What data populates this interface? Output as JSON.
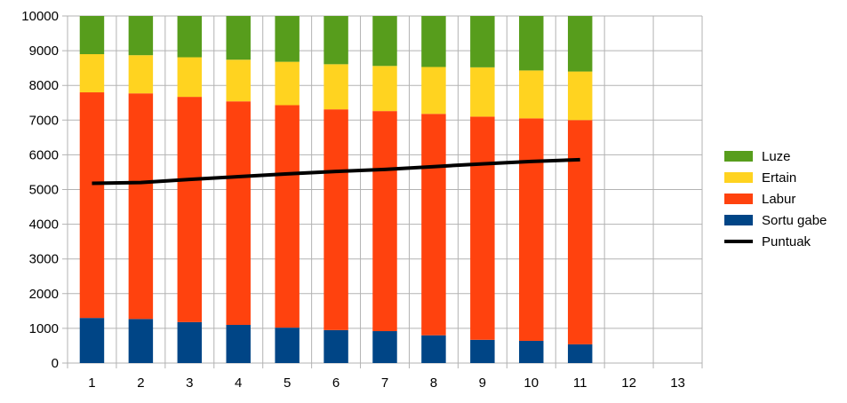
{
  "chart_data": {
    "type": "bar",
    "stacked": true,
    "categories": [
      "1",
      "2",
      "3",
      "4",
      "5",
      "6",
      "7",
      "8",
      "9",
      "10",
      "11",
      "12",
      "13"
    ],
    "ylim": [
      0,
      10000
    ],
    "yticks": [
      "0",
      "1000",
      "2000",
      "3000",
      "4000",
      "5000",
      "6000",
      "7000",
      "8000",
      "9000",
      "10000"
    ],
    "grid": true,
    "legend_position": "right",
    "title": "",
    "xlabel": "",
    "ylabel": "",
    "series": [
      {
        "name": "Sortu gabe",
        "kind": "bar",
        "color": "#004586",
        "values": [
          1300,
          1270,
          1180,
          1100,
          1020,
          950,
          920,
          800,
          670,
          640,
          540,
          null,
          null
        ]
      },
      {
        "name": "Labur",
        "kind": "bar",
        "color": "#FF420E",
        "values": [
          6500,
          6500,
          6490,
          6440,
          6410,
          6360,
          6340,
          6380,
          6430,
          6410,
          6460,
          null,
          null
        ]
      },
      {
        "name": "Ertain",
        "kind": "bar",
        "color": "#FFD320",
        "values": [
          1100,
          1100,
          1140,
          1200,
          1250,
          1300,
          1300,
          1350,
          1420,
          1380,
          1400,
          null,
          null
        ]
      },
      {
        "name": "Luze",
        "kind": "bar",
        "color": "#579D1C",
        "values": [
          1100,
          1130,
          1190,
          1260,
          1320,
          1390,
          1440,
          1470,
          1480,
          1570,
          1600,
          null,
          null
        ]
      },
      {
        "name": "Puntuak",
        "kind": "line",
        "color": "#000000",
        "values": [
          5180,
          5200,
          5290,
          5370,
          5450,
          5520,
          5580,
          5660,
          5740,
          5810,
          5860,
          null,
          null
        ]
      }
    ],
    "legend_order": [
      "Luze",
      "Ertain",
      "Labur",
      "Sortu gabe",
      "Puntuak"
    ]
  }
}
